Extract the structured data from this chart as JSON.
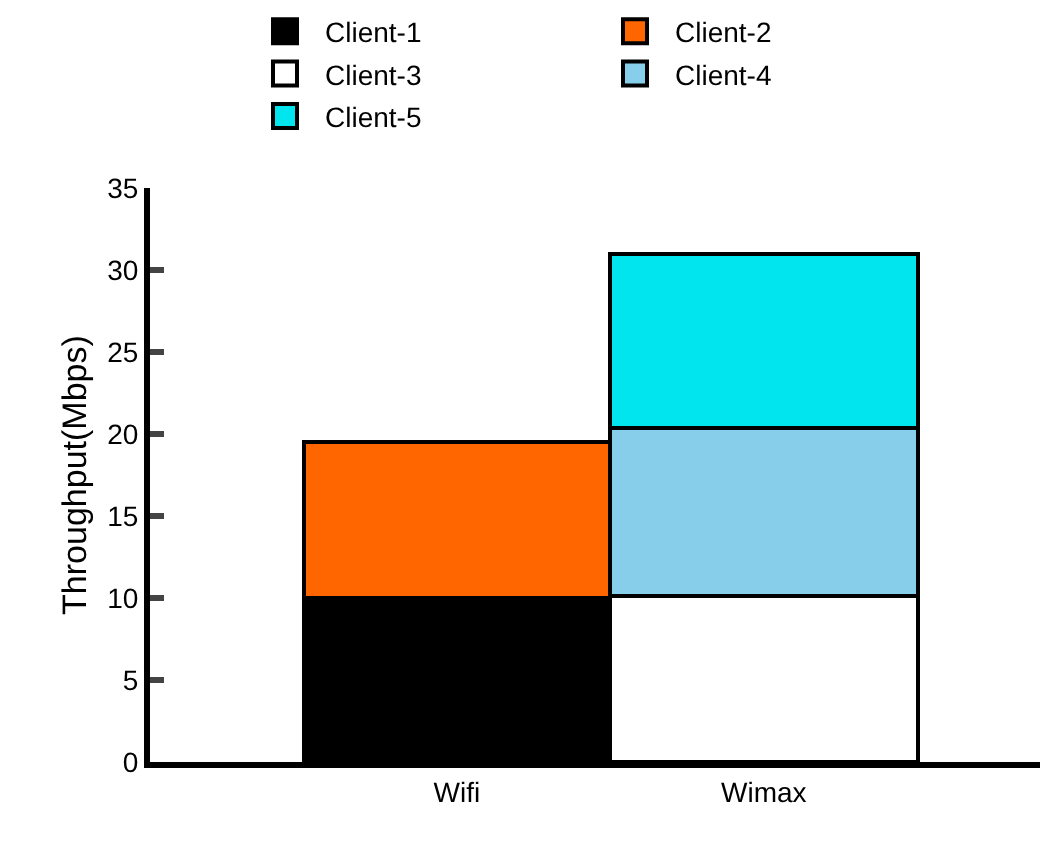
{
  "chart_data": {
    "type": "bar",
    "stacked": true,
    "ylabel": "Throughput(Mbps)",
    "categories": [
      "Wifi",
      "Wimax"
    ],
    "series": [
      {
        "name": "Client-1",
        "color": "#000000",
        "values": [
          10.0,
          null
        ]
      },
      {
        "name": "Client-2",
        "color": "#ff6600",
        "values": [
          9.5,
          null
        ]
      },
      {
        "name": "Client-3",
        "color": "#ffffff",
        "values": [
          null,
          10.1
        ]
      },
      {
        "name": "Client-4",
        "color": "#87ceeb",
        "values": [
          null,
          10.3
        ]
      },
      {
        "name": "Client-5",
        "color": "#00e5ee",
        "values": [
          null,
          10.6
        ]
      }
    ],
    "ylim": [
      0,
      35
    ],
    "yticks": [
      0,
      5,
      10,
      15,
      20,
      25,
      30,
      35
    ],
    "legend": "top"
  }
}
